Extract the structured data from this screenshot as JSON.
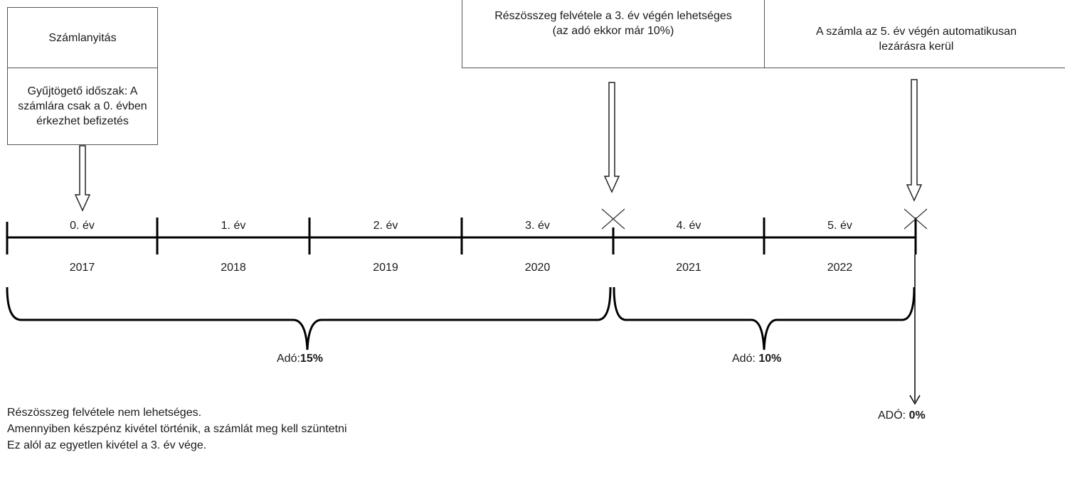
{
  "boxes": {
    "account_opening": "Számlanyitás",
    "collection_period": "Gyűjtögető időszak: A számlára csak a 0. évben érkezhet befizetés",
    "partial_withdrawal": "Részösszeg felvétele a 3. év végén lehetséges (az adó ekkor már 10%)",
    "auto_close": "A számla az 5. év végén automatikusan lezárásra kerül"
  },
  "timeline": {
    "years": [
      {
        "label": "0. év",
        "year": "2017"
      },
      {
        "label": "1. év",
        "year": "2018"
      },
      {
        "label": "2. év",
        "year": "2019"
      },
      {
        "label": "3. év",
        "year": "2020"
      },
      {
        "label": "4. év",
        "year": "2021"
      },
      {
        "label": "5. év",
        "year": "2022"
      }
    ]
  },
  "taxes": {
    "first": {
      "prefix": "Adó:",
      "value": "15%"
    },
    "second": {
      "prefix": "Adó:",
      "value": "10%"
    },
    "final": {
      "prefix": "ADÓ:",
      "value": "0%"
    }
  },
  "notes": [
    "Részösszeg felvétele nem lehetséges.",
    "Amennyiben készpénz kivétel történik, a számlát meg kell szüntetni",
    "Ez alól az egyetlen kivétel a 3. év vége."
  ]
}
